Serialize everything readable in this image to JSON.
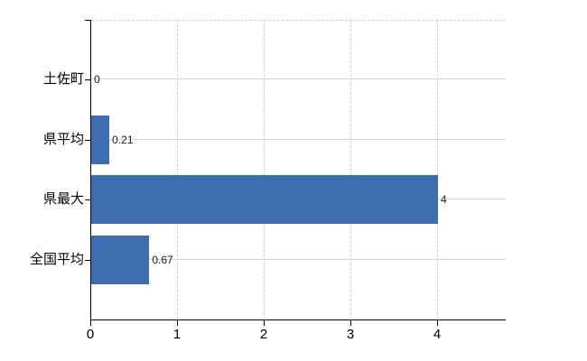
{
  "chart": {
    "background": "#ffffff",
    "bar_color": "#3d6dac",
    "axis_color": "#000000",
    "horizontal_grid_color": "#d4d8d2",
    "vertical_grid_color": "#cbcfcb",
    "category_label_color": "#000000",
    "value_label_color": "#1a1a1a"
  },
  "chart_data": {
    "type": "bar",
    "orientation": "horizontal",
    "title": "",
    "xlabel": "",
    "ylabel": "",
    "legend": false,
    "grid": true,
    "categories": [
      "土佐町",
      "県平均",
      "県最大",
      "全国平均"
    ],
    "values": [
      0,
      0.21,
      4,
      0.67
    ],
    "value_labels": [
      "0",
      "0.21",
      "4",
      "0.67"
    ],
    "x_ticks": [
      0,
      1,
      2,
      3,
      4
    ],
    "x_tick_labels": [
      "0",
      "1",
      "2",
      "3",
      "4"
    ],
    "xlim": [
      0,
      4.78
    ]
  }
}
